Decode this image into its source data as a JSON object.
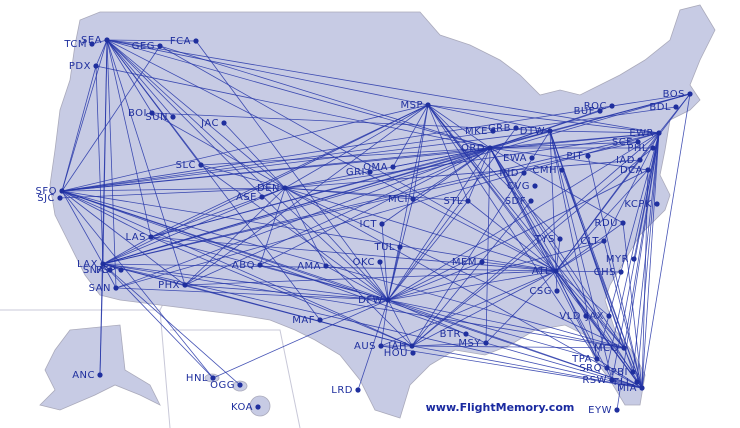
{
  "airports": [
    {
      "code": "SEA"
    },
    {
      "code": "TCM"
    },
    {
      "code": "PDX"
    },
    {
      "code": "GEG"
    },
    {
      "code": "FCA"
    },
    {
      "code": "BOI"
    },
    {
      "code": "SUN"
    },
    {
      "code": "JAC"
    },
    {
      "code": "SLC"
    },
    {
      "code": "DEN"
    },
    {
      "code": "ASE"
    },
    {
      "code": "SFO"
    },
    {
      "code": "SJC"
    },
    {
      "code": "LAS"
    },
    {
      "code": "LAX"
    },
    {
      "code": "SNA"
    },
    {
      "code": "PSP"
    },
    {
      "code": "SAN"
    },
    {
      "code": "PHX"
    },
    {
      "code": "ABQ"
    },
    {
      "code": "AMA"
    },
    {
      "code": "MAF"
    },
    {
      "code": "LRD"
    },
    {
      "code": "AUS"
    },
    {
      "code": "IAH"
    },
    {
      "code": "HOU"
    },
    {
      "code": "DFW"
    },
    {
      "code": "OKC"
    },
    {
      "code": "TUL"
    },
    {
      "code": "ICT"
    },
    {
      "code": "MCI"
    },
    {
      "code": "OMA"
    },
    {
      "code": "GRI"
    },
    {
      "code": "MSP"
    },
    {
      "code": "MKE"
    },
    {
      "code": "GRB"
    },
    {
      "code": "ORD"
    },
    {
      "code": "DTW"
    },
    {
      "code": "EWA"
    },
    {
      "code": "CMH"
    },
    {
      "code": "IND"
    },
    {
      "code": "CVG"
    },
    {
      "code": "SDF"
    },
    {
      "code": "STL"
    },
    {
      "code": "MEM"
    },
    {
      "code": "TYS"
    },
    {
      "code": "ATL"
    },
    {
      "code": "CSG"
    },
    {
      "code": "CLT"
    },
    {
      "code": "RDU"
    },
    {
      "code": "MYR"
    },
    {
      "code": "CHS"
    },
    {
      "code": "VLD"
    },
    {
      "code": "JAX"
    },
    {
      "code": "MCO"
    },
    {
      "code": "TPA"
    },
    {
      "code": "SRQ"
    },
    {
      "code": "RSW"
    },
    {
      "code": "PBI"
    },
    {
      "code": "FLL"
    },
    {
      "code": "MIA"
    },
    {
      "code": "EYW"
    },
    {
      "code": "MSY"
    },
    {
      "code": "BTR"
    },
    {
      "code": "BUF"
    },
    {
      "code": "ROC"
    },
    {
      "code": "SCE"
    },
    {
      "code": "PIT"
    },
    {
      "code": "EWR"
    },
    {
      "code": "PHL"
    },
    {
      "code": "DCA"
    },
    {
      "code": "IAD"
    },
    {
      "code": "BDL"
    },
    {
      "code": "BOS"
    },
    {
      "code": "KCPK"
    },
    {
      "code": "ANC"
    },
    {
      "code": "HNL"
    },
    {
      "code": "OGG"
    },
    {
      "code": "KOA"
    }
  ],
  "credit": "www.FlightMemory.com"
}
